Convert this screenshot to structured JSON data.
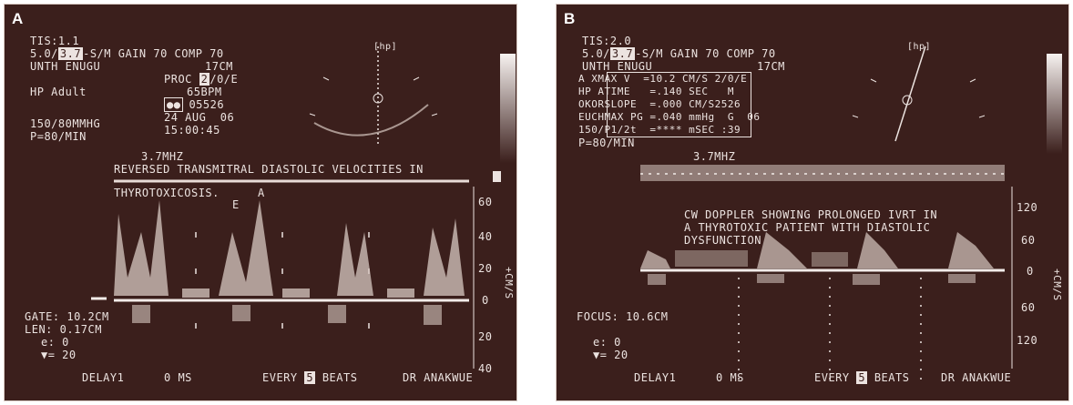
{
  "panel_a": {
    "letter": "A",
    "tis": "TIS:1.1",
    "line2_pre": "5.0/",
    "line2_box": "3.7",
    "line2_post": "-S/M GAIN 70 COMP 70",
    "depth": "17CM",
    "institution": "UNTH ENUGU",
    "proc_pre": "PROC ",
    "proc_box": "2",
    "proc_post": "/0/E",
    "preset": "HP Adult",
    "bpm": "65BPM",
    "id": "05526",
    "date": "24 AUG  06",
    "bp": "150/80MMHG",
    "time": "15:00:45",
    "pulse": "P=80/MIN",
    "freq": "3.7MHZ",
    "caption_1": "REVERSED TRANSMITRAL DIASTOLIC VELOCITIES IN",
    "caption_2": "THYROTOXICOSIS.",
    "label_a": "A",
    "label_e": "E",
    "scale_top": [
      "60",
      "40",
      "20",
      "0"
    ],
    "scale_bottom": [
      "20",
      "40"
    ],
    "cms_label": "+CM/S",
    "gate": "GATE: 10.2CM",
    "len": "LEN: 0.17CM",
    "theta": "e: 0",
    "angle": "▼= 20",
    "delay": "DELAY1",
    "ms": "0 MS",
    "every": "EVERY",
    "every_box": "5",
    "beats": "BEATS",
    "doctor": "DR ANAKWUE",
    "hp": "[hp]"
  },
  "panel_b": {
    "letter": "B",
    "tis": "TIS:2.0",
    "line2_pre": "5.0/",
    "line2_box": "3.7",
    "line2_post": "-S/M GAIN 70 COMP 70",
    "depth": "17CM",
    "institution": "UNTH ENUGU",
    "meas": [
      {
        "prefix": "A X",
        "label": "MAX V",
        "value": "=10.2 CM/S",
        "suffix": "2/0/E"
      },
      {
        "prefix": "HP A",
        "label": "TIME",
        "value": "=.140 SEC",
        "suffix": "M"
      },
      {
        "prefix": "OKOR",
        "label": "SLOPE",
        "value": "=.000 CM/S2",
        "suffix": "526"
      },
      {
        "prefix": "EUCH",
        "label": "MAX PG",
        "value": "=.040 mmHg",
        "suffix": "G  06"
      },
      {
        "prefix": "150/",
        "label": "P1/2t",
        "value": "=**** mSEC",
        "suffix": ":39"
      }
    ],
    "pulse": "P=80/MIN",
    "freq": "3.7MHZ",
    "caption_1": "CW DOPPLER SHOWING PROLONGED IVRT IN",
    "caption_2": "A THYROTOXIC PATIENT WITH DIASTOLIC",
    "caption_3": "DYSFUNCTION",
    "scale_top": [
      "120",
      "60",
      "0"
    ],
    "scale_bottom": [
      "60",
      "120"
    ],
    "cms_label": "+CM/S",
    "focus": "FOCUS: 10.6CM",
    "theta": "e: 0",
    "angle": "▼= 20",
    "delay": "DELAY1",
    "ms": "0 MS",
    "every": "EVERY",
    "every_box": "5",
    "beats": "BEATS",
    "doctor": "DR ANAKWUE",
    "hp": "[hp]"
  }
}
